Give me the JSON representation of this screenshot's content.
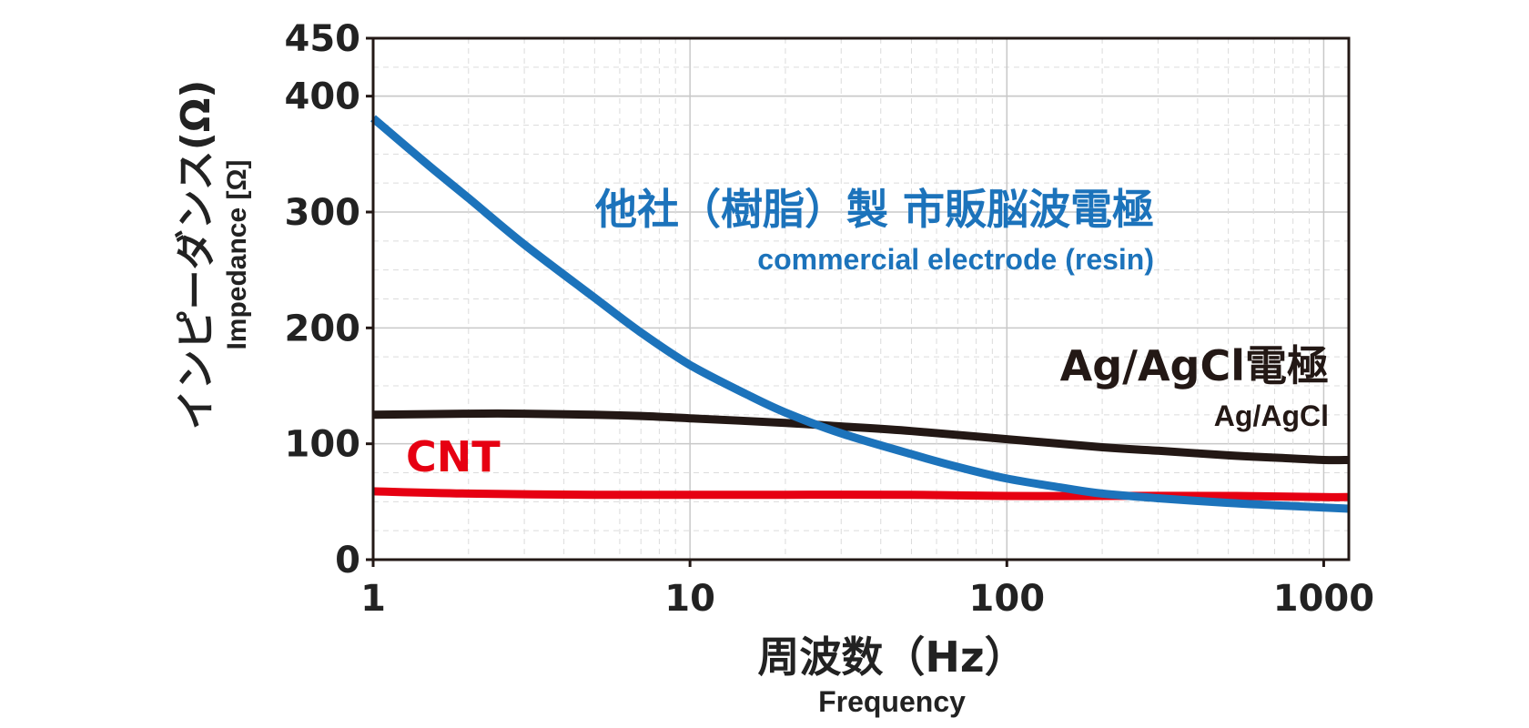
{
  "chart_data": {
    "type": "line",
    "x_scale": "log",
    "xlim": [
      1,
      1200
    ],
    "ylim": [
      0,
      450
    ],
    "x_ticks": [
      "1",
      "10",
      "100",
      "1000"
    ],
    "y_ticks": [
      "0",
      "100",
      "200",
      "300",
      "400",
      "450"
    ],
    "xlabel": "周波数（Hz）",
    "xlabel_en": "Frequency",
    "ylabel": "インピーダンス(Ω)",
    "ylabel_en": "Impedance [Ω]",
    "grid": true,
    "series": [
      {
        "name": "他社（樹脂）製 市販脳波電極",
        "name_en": "commercial electrode (resin)",
        "color": "#1c73bb",
        "x": [
          1,
          1.5,
          2,
          3,
          5,
          7,
          10,
          15,
          20,
          30,
          50,
          70,
          100,
          150,
          200,
          300,
          500,
          700,
          1000,
          1200
        ],
        "y": [
          381,
          340,
          312,
          272,
          226,
          196,
          168,
          143,
          127,
          109,
          91,
          80,
          70,
          62,
          57,
          53,
          49,
          47,
          45,
          44
        ]
      },
      {
        "name": "Ag/AgCl電極",
        "name_en": "Ag/AgCl",
        "color": "#231815",
        "x": [
          1,
          2,
          3,
          5,
          7,
          10,
          20,
          30,
          50,
          100,
          200,
          300,
          500,
          700,
          1000,
          1200
        ],
        "y": [
          125,
          126,
          126,
          125,
          124,
          122,
          118,
          115,
          111,
          104,
          97,
          94,
          90,
          88,
          86,
          86
        ]
      },
      {
        "name": "CNT",
        "color": "#e60012",
        "x": [
          1,
          2,
          5,
          10,
          20,
          50,
          100,
          200,
          500,
          1000,
          1200
        ],
        "y": [
          59,
          57,
          56,
          56,
          56,
          56,
          55,
          55,
          55,
          54,
          54
        ]
      }
    ]
  }
}
